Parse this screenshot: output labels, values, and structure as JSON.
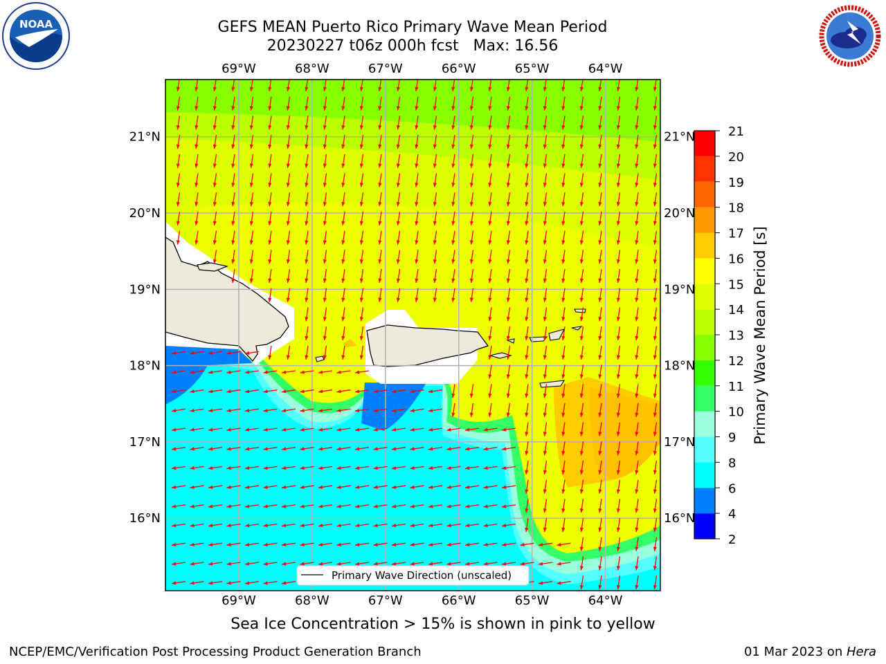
{
  "header": {
    "title_line1": "GEFS MEAN Puerto Rico Primary Wave Mean Period",
    "title_line2": "20230227 t06z 000h fcst   Max: 16.56"
  },
  "logos": {
    "left": {
      "name": "noaa-logo",
      "text": "NOAA"
    },
    "right": {
      "name": "nws-logo",
      "text": "NATIONAL WEATHER SERVICE"
    }
  },
  "map": {
    "lon_ticks": [
      "69°W",
      "68°W",
      "67°W",
      "66°W",
      "65°W",
      "64°W"
    ],
    "lat_ticks": [
      "21°N",
      "20°N",
      "19°N",
      "18°N",
      "17°N",
      "16°N"
    ],
    "lon_range": [
      -70.0,
      -63.25
    ],
    "lat_range": [
      15.05,
      21.75
    ],
    "legend_label": "Primary Wave Direction (unscaled)",
    "arrow_color": "#ff0000",
    "land_color": "#eeeadb",
    "grid_color": "#b0b0b0"
  },
  "colorbar": {
    "label": "Primary Wave Mean Period [s]",
    "ticks": [
      "21",
      "20",
      "19",
      "18",
      "17",
      "16",
      "15",
      "14",
      "13",
      "12",
      "11",
      "10",
      "9",
      "8",
      "6",
      "4",
      "2"
    ],
    "colors": [
      "#0000ff",
      "#0080ff",
      "#00ffff",
      "#55ffff",
      "#99ffdd",
      "#33ff66",
      "#33ff00",
      "#88ff00",
      "#bbff00",
      "#ddff00",
      "#ffff00",
      "#ffcc00",
      "#ff9900",
      "#ff6600",
      "#ff3300",
      "#ff0000"
    ]
  },
  "footer": {
    "note": "Sea Ice Concentration > 15% is shown in pink to yellow",
    "org": "NCEP/EMC/Verification Post Processing Product Generation Branch",
    "date": "01 Mar 2023 on ",
    "machine": "Hera"
  }
}
